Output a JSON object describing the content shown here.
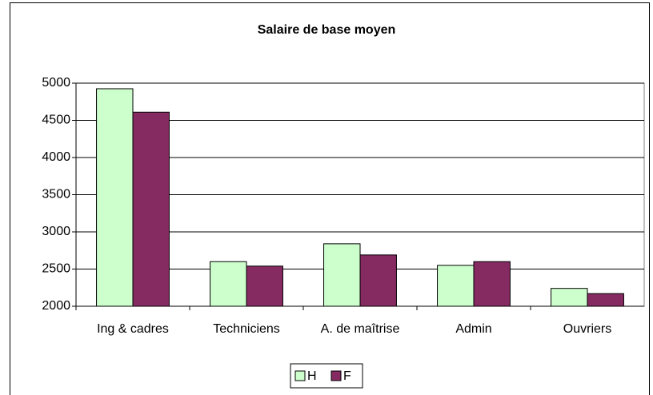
{
  "chart_data": {
    "type": "bar",
    "title": "Salaire de base moyen",
    "categories": [
      "Ing & cadres",
      "Techniciens",
      "A. de maîtrise",
      "Admin",
      "Ouvriers"
    ],
    "series": [
      {
        "name": "H",
        "color": "#ccffcc",
        "values": [
          4925,
          2600,
          2840,
          2550,
          2240
        ]
      },
      {
        "name": "F",
        "color": "#862a62",
        "values": [
          4610,
          2540,
          2690,
          2600,
          2170
        ]
      }
    ],
    "ylim": [
      2000,
      5000
    ],
    "yticks": [
      2000,
      2500,
      3000,
      3500,
      4000,
      4500,
      5000
    ],
    "grid": true,
    "legend": "bottom"
  }
}
